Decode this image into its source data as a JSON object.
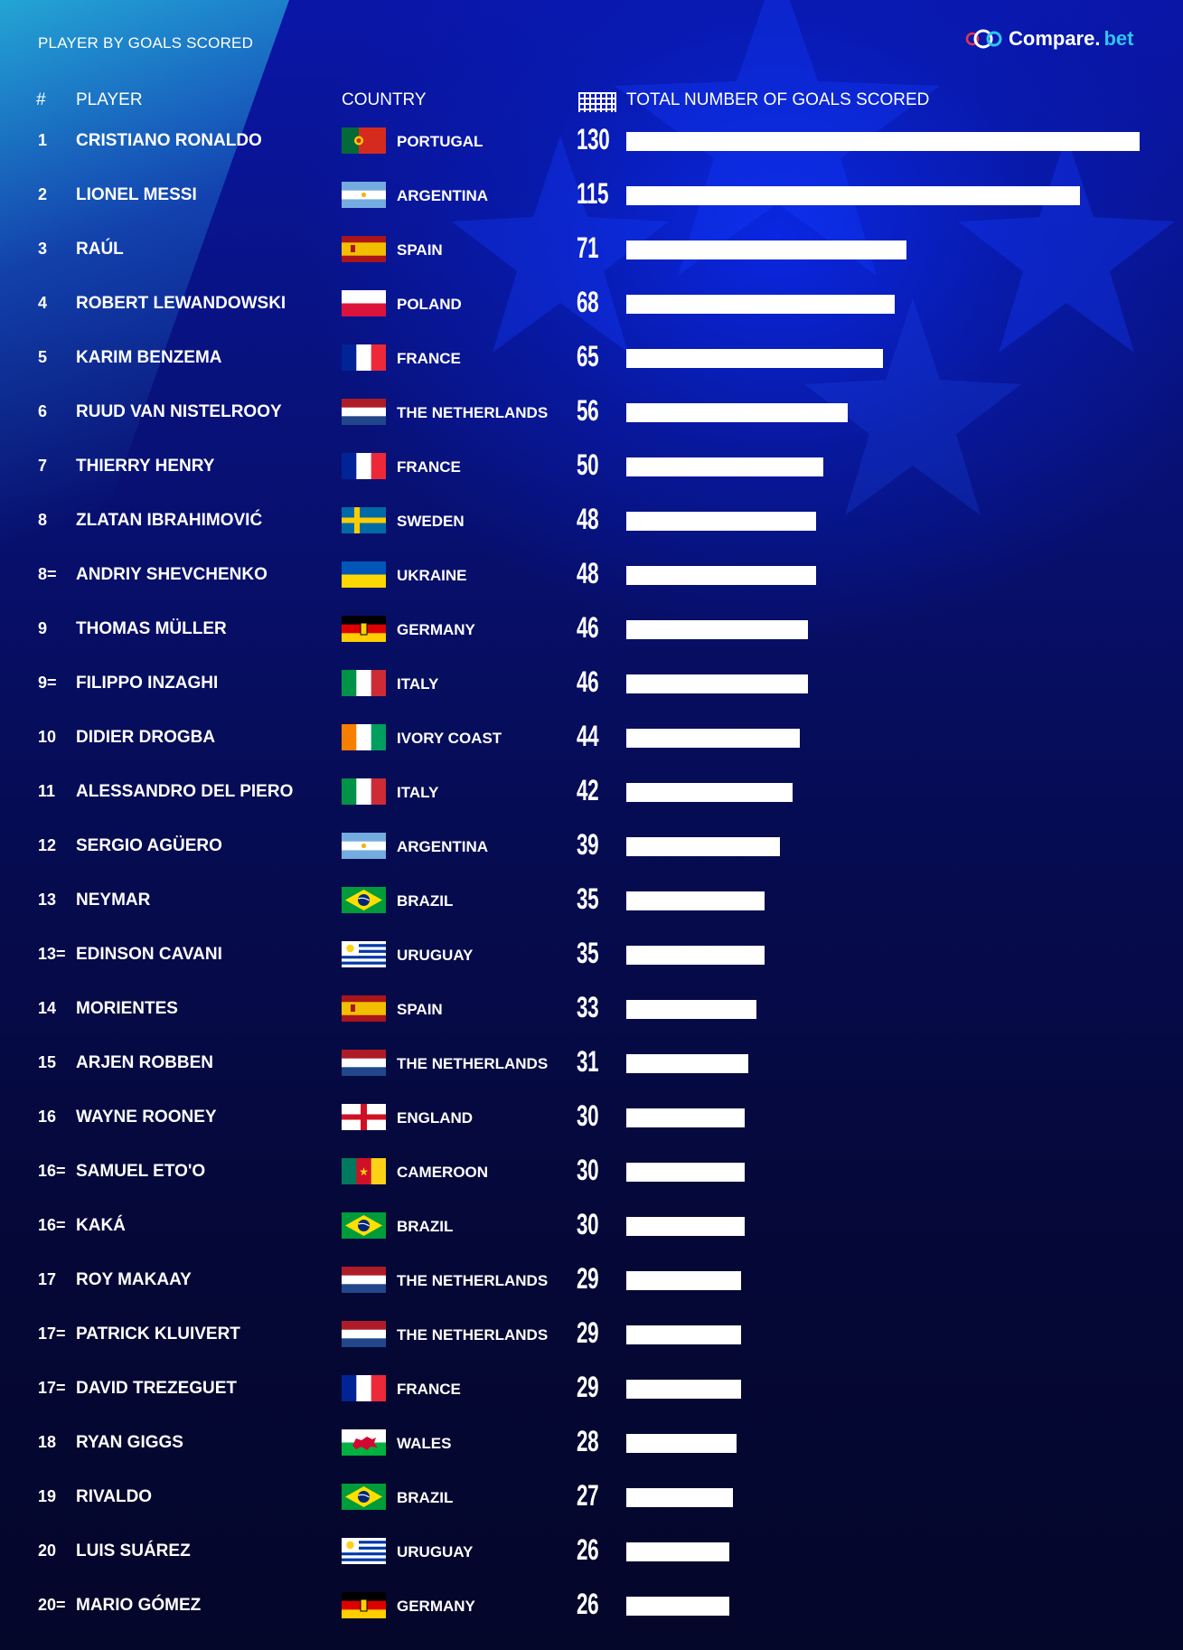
{
  "header": {
    "title": "PLAYER BY GOALS SCORED",
    "logo_name": "Compare.",
    "logo_domain": "bet"
  },
  "columns": {
    "rank": "#",
    "player": "PLAYER",
    "country": "COUNTRY",
    "goals": "TOTAL NUMBER OF GOALS SCORED"
  },
  "colors": {
    "bar": "#ffffff",
    "logo_accent": "#2ec5f0"
  },
  "chart_data": {
    "type": "bar",
    "orientation": "horizontal",
    "title": "PLAYER BY GOALS SCORED",
    "xlabel": "TOTAL NUMBER OF GOALS SCORED",
    "xlim": [
      0,
      130
    ],
    "rows": [
      {
        "rank": "1",
        "player": "CRISTIANO RONALDO",
        "country": "PORTUGAL",
        "flag": "portugal",
        "goals": 130
      },
      {
        "rank": "2",
        "player": "LIONEL MESSI",
        "country": "ARGENTINA",
        "flag": "argentina",
        "goals": 115
      },
      {
        "rank": "3",
        "player": "RAÚL",
        "country": "SPAIN",
        "flag": "spain",
        "goals": 71
      },
      {
        "rank": "4",
        "player": "ROBERT LEWANDOWSKI",
        "country": "POLAND",
        "flag": "poland",
        "goals": 68
      },
      {
        "rank": "5",
        "player": "KARIM BENZEMA",
        "country": "FRANCE",
        "flag": "france",
        "goals": 65
      },
      {
        "rank": "6",
        "player": "RUUD VAN NISTELROOY",
        "country": "THE NETHERLANDS",
        "flag": "netherlands",
        "goals": 56
      },
      {
        "rank": "7",
        "player": "THIERRY HENRY",
        "country": "FRANCE",
        "flag": "france",
        "goals": 50
      },
      {
        "rank": "8",
        "player": "ZLATAN IBRAHIMOVIĆ",
        "country": "SWEDEN",
        "flag": "sweden",
        "goals": 48
      },
      {
        "rank": "8=",
        "player": "ANDRIY SHEVCHENKO",
        "country": "UKRAINE",
        "flag": "ukraine",
        "goals": 48
      },
      {
        "rank": "9",
        "player": "THOMAS MÜLLER",
        "country": "GERMANY",
        "flag": "germany",
        "goals": 46
      },
      {
        "rank": "9=",
        "player": "FILIPPO INZAGHI",
        "country": "ITALY",
        "flag": "italy",
        "goals": 46
      },
      {
        "rank": "10",
        "player": "DIDIER DROGBA",
        "country": "IVORY COAST",
        "flag": "ivory-coast",
        "goals": 44
      },
      {
        "rank": "11",
        "player": "ALESSANDRO DEL PIERO",
        "country": "ITALY",
        "flag": "italy",
        "goals": 42
      },
      {
        "rank": "12",
        "player": "SERGIO AGÜERO",
        "country": "ARGENTINA",
        "flag": "argentina",
        "goals": 39
      },
      {
        "rank": "13",
        "player": "NEYMAR",
        "country": "BRAZIL",
        "flag": "brazil",
        "goals": 35
      },
      {
        "rank": "13=",
        "player": "EDINSON CAVANI",
        "country": "URUGUAY",
        "flag": "uruguay",
        "goals": 35
      },
      {
        "rank": "14",
        "player": "MORIENTES",
        "country": "SPAIN",
        "flag": "spain",
        "goals": 33
      },
      {
        "rank": "15",
        "player": "ARJEN ROBBEN",
        "country": "THE NETHERLANDS",
        "flag": "netherlands",
        "goals": 31
      },
      {
        "rank": "16",
        "player": "WAYNE ROONEY",
        "country": "ENGLAND",
        "flag": "england",
        "goals": 30
      },
      {
        "rank": "16=",
        "player": "SAMUEL ETO'O",
        "country": "CAMEROON",
        "flag": "cameroon",
        "goals": 30
      },
      {
        "rank": "16=",
        "player": "KAKÁ",
        "country": "BRAZIL",
        "flag": "brazil",
        "goals": 30
      },
      {
        "rank": "17",
        "player": "ROY MAKAAY",
        "country": "THE NETHERLANDS",
        "flag": "netherlands",
        "goals": 29
      },
      {
        "rank": "17=",
        "player": "PATRICK KLUIVERT",
        "country": "THE NETHERLANDS",
        "flag": "netherlands",
        "goals": 29
      },
      {
        "rank": "17=",
        "player": "DAVID TREZEGUET",
        "country": "FRANCE",
        "flag": "france",
        "goals": 29
      },
      {
        "rank": "18",
        "player": "RYAN GIGGS",
        "country": "WALES",
        "flag": "wales",
        "goals": 28
      },
      {
        "rank": "19",
        "player": "RIVALDO",
        "country": "BRAZIL",
        "flag": "brazil",
        "goals": 27
      },
      {
        "rank": "20",
        "player": "LUIS SUÁREZ",
        "country": "URUGUAY",
        "flag": "uruguay",
        "goals": 26
      },
      {
        "rank": "20=",
        "player": "MARIO GÓMEZ",
        "country": "GERMANY",
        "flag": "germany",
        "goals": 26
      }
    ]
  }
}
